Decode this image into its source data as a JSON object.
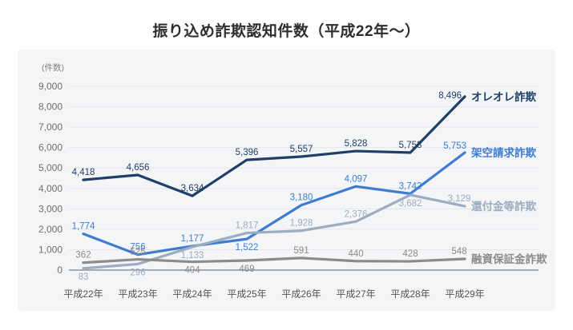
{
  "title": "振り込め詐欺認知件数（平成22年〜）",
  "panel": {
    "background": "#f4f5f7"
  },
  "colors": {
    "grid": "#e4e6ea",
    "zero_line": "#a6abb3",
    "title_text": "#2e2e2e",
    "axis_text": "#545454"
  },
  "chart_data": {
    "type": "line",
    "title": "振り込め詐欺認知件数（平成22年〜）",
    "unit_label": "(件数)",
    "categories": [
      "平成22年",
      "平成23年",
      "平成24年",
      "平成25年",
      "平成26年",
      "平成27年",
      "平成28年",
      "平成29年"
    ],
    "ylim": [
      0,
      9000
    ],
    "y_tick_step": 1000,
    "grid": true,
    "legend_position": "line-end-labels",
    "series": [
      {
        "name": "オレオレ詐欺",
        "color": "#1f3f68",
        "values": [
          4418,
          4656,
          3634,
          5396,
          5557,
          5828,
          5753,
          8496
        ]
      },
      {
        "name": "架空請求詐欺",
        "color": "#3d7cd1",
        "values": [
          1774,
          756,
          1177,
          1522,
          3180,
          4097,
          3742,
          5753
        ]
      },
      {
        "name": "還付金等詐欺",
        "color": "#9badc0",
        "values": [
          83,
          296,
          1133,
          1817,
          1928,
          2376,
          3682,
          3129
        ]
      },
      {
        "name": "融資保証金詐欺",
        "color": "#8b8b8b",
        "values": [
          362,
          525,
          404,
          469,
          591,
          440,
          428,
          548
        ]
      }
    ]
  }
}
